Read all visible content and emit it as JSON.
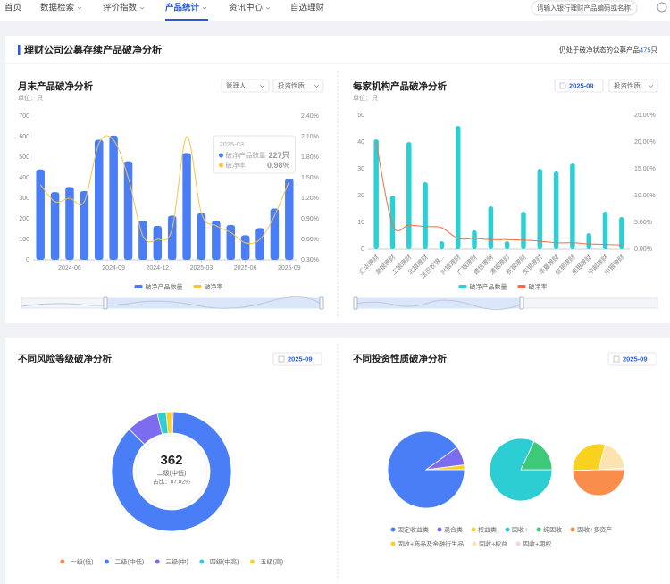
{
  "nav": {
    "items": [
      "首页",
      "数据检索",
      "评价指数",
      "产品统计",
      "资讯中心",
      "自选理财"
    ],
    "active": 3,
    "search_placeholder": "请输入银行理财产品编码或名称"
  },
  "panel": {
    "title": "理财公司公募存续产品破净分析",
    "summary_prefix": "仍处于破净状态的公募产品",
    "summary_count": 475,
    "summary_unit": "只"
  },
  "chart_data": [
    {
      "type": "bar-line",
      "title": "月末产品破净分析",
      "unit_label": "单位：只",
      "filters": [
        "管理人",
        "投资性质"
      ],
      "categories": [
        null,
        null,
        "2024-06",
        null,
        null,
        "2024-09",
        null,
        null,
        "2024-12",
        null,
        null,
        "2025-03",
        null,
        null,
        "2025-06",
        null,
        null,
        "2025-09"
      ],
      "series": [
        {
          "name": "破净产品数量",
          "color": "#4a7ef7",
          "values": [
            440,
            330,
            355,
            335,
            585,
            605,
            480,
            190,
            165,
            215,
            520,
            227,
            190,
            170,
            120,
            155,
            250,
            395
          ],
          "value_labels": [
            null,
            null,
            null,
            null,
            null,
            null,
            null,
            null,
            null,
            null,
            null,
            "227只",
            null,
            null,
            null,
            null,
            null,
            null
          ]
        },
        {
          "name": "破净率",
          "color": "#f5c542",
          "axis": "y2",
          "values": [
            1.4,
            1.15,
            1.2,
            1.15,
            2.0,
            2.05,
            1.5,
            0.65,
            0.6,
            0.75,
            2.1,
            0.98,
            0.8,
            0.7,
            0.55,
            0.6,
            0.95,
            1.45
          ],
          "value_labels": [
            null,
            null,
            null,
            null,
            null,
            null,
            null,
            null,
            null,
            null,
            null,
            "0.98%",
            null,
            null,
            null,
            null,
            null,
            null
          ]
        }
      ],
      "ylim": [
        0,
        700
      ],
      "yticks": [
        0,
        100,
        200,
        300,
        400,
        500,
        600,
        700
      ],
      "y2lim": [
        0.3,
        2.4
      ],
      "y2ticks": [
        {
          "value": 0.3,
          "label": "0.30%"
        },
        {
          "value": 0.6,
          "label": "0.60%"
        },
        {
          "value": 0.9,
          "label": "0.90%"
        },
        {
          "value": 1.2,
          "label": "1.20%"
        },
        {
          "value": 1.5,
          "label": "1.50%"
        },
        {
          "value": 1.8,
          "label": "1.80%"
        },
        {
          "value": 2.1,
          "label": "2.10%"
        },
        {
          "value": 2.4,
          "label": "2.40%"
        }
      ],
      "smooth": true,
      "legend": "bottom",
      "tooltip_index": 11
    },
    {
      "type": "bar-line",
      "title": "每家机构产品破净分析",
      "unit_label": "单位：只",
      "date": "2025-09",
      "filters": [
        "投资性质"
      ],
      "categories": [
        "汇华理财",
        "渤银理财",
        "工银理财",
        "北银理财",
        "法巴农银...",
        "兴银理财",
        "广银理财",
        "建信理财",
        "浦银理财",
        "杭银理财",
        "交银理财",
        "华夏理财",
        "信银理财",
        "南银理财",
        "中邮理财",
        "中银理财"
      ],
      "series": [
        {
          "name": "破净产品数量",
          "color": "#2ccfd3",
          "values": [
            41,
            20,
            40,
            25,
            3,
            46,
            7,
            16,
            3,
            14,
            30,
            29,
            32,
            6,
            14,
            12
          ]
        },
        {
          "name": "破净率",
          "color": "#f36f45",
          "axis": "y2",
          "values": [
            20,
            4.5,
            4.5,
            4.2,
            4.0,
            2.0,
            2.0,
            1.8,
            1.8,
            1.7,
            1.5,
            1.2,
            1.2,
            1.0,
            0.9,
            0.8
          ]
        }
      ],
      "ylim": [
        0,
        50
      ],
      "yticks": [
        0,
        10,
        20,
        30,
        40,
        50
      ],
      "y2lim": [
        0,
        25
      ],
      "y2ticks": [
        {
          "value": 0,
          "label": "0.00%"
        },
        {
          "value": 5,
          "label": "5.00%"
        },
        {
          "value": 10,
          "label": "10.00%"
        },
        {
          "value": 15,
          "label": "15.00%"
        },
        {
          "value": 20,
          "label": "20.00%"
        },
        {
          "value": 25,
          "label": "25.00%"
        }
      ],
      "smooth": true,
      "legend": "bottom"
    },
    {
      "type": "donut",
      "title": "不同风险等级破净分析",
      "date": "2025-09",
      "categories": [
        "一级(低)",
        "二级(中低)",
        "三级(中)",
        "四级(中高)",
        "五级(高)"
      ],
      "values": [
        2,
        362,
        36,
        10,
        6
      ],
      "colors": [
        "#f98d4b",
        "#4a7ef7",
        "#7b6cf0",
        "#2dcdd4",
        "#f7d21f"
      ],
      "selected": 1,
      "center_label": "占比：87.02%",
      "legend": "bottom"
    },
    {
      "type": "multi-pie",
      "title": "不同投资性质破净分析",
      "date": "2025-09",
      "series": [
        {
          "categories": [
            "固定收益类",
            "混合类",
            "权益类"
          ],
          "values": [
            90,
            8,
            2
          ],
          "colors": [
            "#4a7ef7",
            "#7b6cf0",
            "#f7d21f"
          ]
        },
        {
          "categories": [
            "固收+",
            "纯固收"
          ],
          "values": [
            82,
            18
          ],
          "colors": [
            "#2dcdd4",
            "#3ec97a"
          ]
        },
        {
          "categories": [
            "固收+多资产",
            "固收+商品及金融衍生品",
            "固收+权益",
            "固收+期权"
          ],
          "values": [
            50,
            30,
            20,
            1
          ],
          "colors": [
            "#f98d4b",
            "#f7d21f",
            "#fde3b0",
            "#f9d5d0"
          ]
        }
      ],
      "legend": "bottom"
    }
  ]
}
